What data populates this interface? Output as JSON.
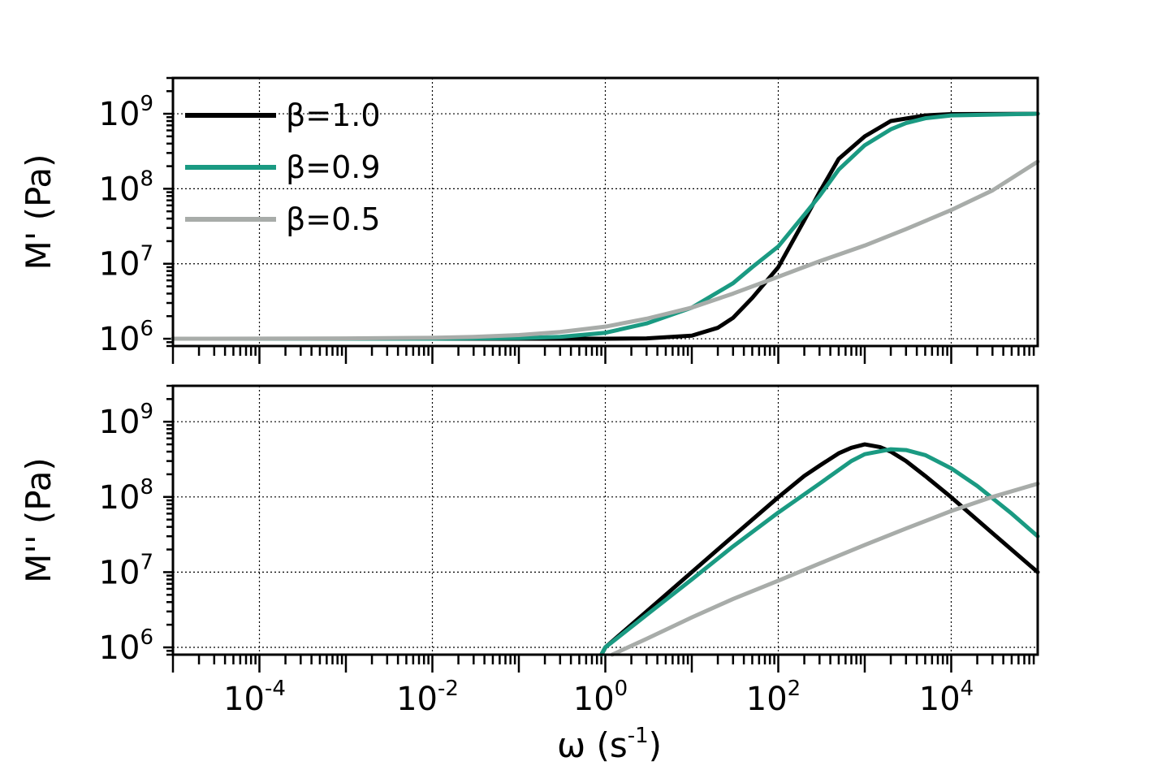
{
  "chart_data": [
    {
      "type": "line",
      "id": "top",
      "ylabel": "M' (Pa)",
      "xlabel": "",
      "x_scale": "log",
      "y_scale": "log",
      "xlim": [
        1e-05,
        100000
      ],
      "ylim": [
        800000,
        3000000000
      ],
      "grid": true,
      "x_ticks": [
        {
          "base": "10",
          "exp": "-4",
          "value": 0.0001
        },
        {
          "base": "10",
          "exp": "-2",
          "value": 0.01
        },
        {
          "base": "10",
          "exp": "0",
          "value": 1
        },
        {
          "base": "10",
          "exp": "2",
          "value": 100
        },
        {
          "base": "10",
          "exp": "4",
          "value": 10000
        }
      ],
      "y_ticks": [
        {
          "base": "10",
          "exp": "6",
          "value": 1000000
        },
        {
          "base": "10",
          "exp": "7",
          "value": 10000000
        },
        {
          "base": "10",
          "exp": "8",
          "value": 100000000
        },
        {
          "base": "10",
          "exp": "9",
          "value": 1000000000
        }
      ],
      "show_x_tick_labels": false,
      "legend": {
        "placement": "top-left",
        "entries": [
          {
            "label": "β=1.0",
            "color": "#000000"
          },
          {
            "label": "β=0.9",
            "color": "#1a9a82"
          },
          {
            "label": "β=0.5",
            "color": "#a8aca9"
          }
        ]
      },
      "series": [
        {
          "name": "β=1.0",
          "color": "#000000",
          "x": [
            1e-05,
            0.001,
            0.1,
            1,
            3,
            10,
            20,
            30,
            50,
            100,
            200,
            300,
            500,
            1000,
            2000,
            5000,
            10000,
            100000
          ],
          "y": [
            1000000,
            1000000,
            1000000,
            1000000,
            1010000,
            1100000,
            1400000,
            1900000,
            3500000,
            9000000,
            38000000,
            90000000,
            250000000,
            500000000,
            800000000,
            950000000,
            990000000,
            1000000000
          ]
        },
        {
          "name": "β=0.9",
          "color": "#1a9a82",
          "x": [
            1e-05,
            0.01,
            0.1,
            0.3,
            1,
            3,
            10,
            30,
            50,
            100,
            200,
            300,
            500,
            1000,
            2000,
            3000,
            5000,
            10000,
            100000
          ],
          "y": [
            1000000,
            1000000,
            1020000,
            1060000,
            1200000,
            1600000,
            2600000,
            5500000,
            9000000,
            17000000,
            45000000,
            80000000,
            180000000,
            380000000,
            620000000,
            750000000,
            870000000,
            950000000,
            1000000000
          ]
        },
        {
          "name": "β=0.5",
          "color": "#a8aca9",
          "x": [
            1e-05,
            0.001,
            0.01,
            0.03,
            0.1,
            0.3,
            1,
            3,
            10,
            30,
            100,
            300,
            1000,
            3000,
            10000,
            30000,
            100000
          ],
          "y": [
            1000000,
            1010000,
            1030000,
            1060000,
            1120000,
            1230000,
            1450000,
            1850000,
            2600000,
            4000000,
            6700000,
            10800000,
            17500000,
            29000000,
            52000000,
            95000000,
            230000000
          ]
        }
      ]
    },
    {
      "type": "line",
      "id": "bottom",
      "ylabel": "M'' (Pa)",
      "xlabel_parts": {
        "symbol": "ω",
        "unit_open": " (s",
        "unit_exp": "-1",
        "unit_close": ")"
      },
      "x_scale": "log",
      "y_scale": "log",
      "xlim": [
        1e-05,
        100000
      ],
      "ylim": [
        800000,
        3000000000
      ],
      "grid": true,
      "x_ticks": [
        {
          "base": "10",
          "exp": "-4",
          "value": 0.0001
        },
        {
          "base": "10",
          "exp": "-2",
          "value": 0.01
        },
        {
          "base": "10",
          "exp": "0",
          "value": 1
        },
        {
          "base": "10",
          "exp": "2",
          "value": 100
        },
        {
          "base": "10",
          "exp": "4",
          "value": 10000
        }
      ],
      "y_ticks": [
        {
          "base": "10",
          "exp": "6",
          "value": 1000000
        },
        {
          "base": "10",
          "exp": "7",
          "value": 10000000
        },
        {
          "base": "10",
          "exp": "8",
          "value": 100000000
        },
        {
          "base": "10",
          "exp": "9",
          "value": 1000000000
        }
      ],
      "show_x_tick_labels": true,
      "series": [
        {
          "name": "β=1.0",
          "color": "#000000",
          "x": [
            0.9,
            1,
            3,
            10,
            30,
            100,
            200,
            300,
            500,
            700,
            1000,
            1500,
            2000,
            3000,
            5000,
            10000,
            30000,
            100000
          ],
          "y": [
            800000,
            1000000,
            3000000,
            10000000,
            30000000,
            99000000,
            190000000,
            260000000,
            380000000,
            450000000,
            500000000,
            460000000,
            400000000,
            300000000,
            190000000,
            99000000,
            33000000,
            10000000
          ]
        },
        {
          "name": "β=0.9",
          "color": "#1a9a82",
          "x": [
            0.9,
            1,
            3,
            10,
            30,
            100,
            300,
            700,
            1000,
            2000,
            3000,
            5000,
            10000,
            20000,
            50000,
            100000
          ],
          "y": [
            800000,
            1000000,
            2700000,
            8000000,
            22000000,
            62000000,
            150000000,
            300000000,
            370000000,
            430000000,
            420000000,
            360000000,
            240000000,
            140000000,
            60000000,
            30000000
          ]
        },
        {
          "name": "β=0.5",
          "color": "#a8aca9",
          "x": [
            1.2,
            3,
            10,
            30,
            100,
            300,
            1000,
            3000,
            10000,
            30000,
            100000
          ],
          "y": [
            800000,
            1300000,
            2500000,
            4400000,
            7700000,
            13000000,
            23000000,
            38000000,
            65000000,
            100000000,
            150000000
          ]
        }
      ]
    }
  ]
}
